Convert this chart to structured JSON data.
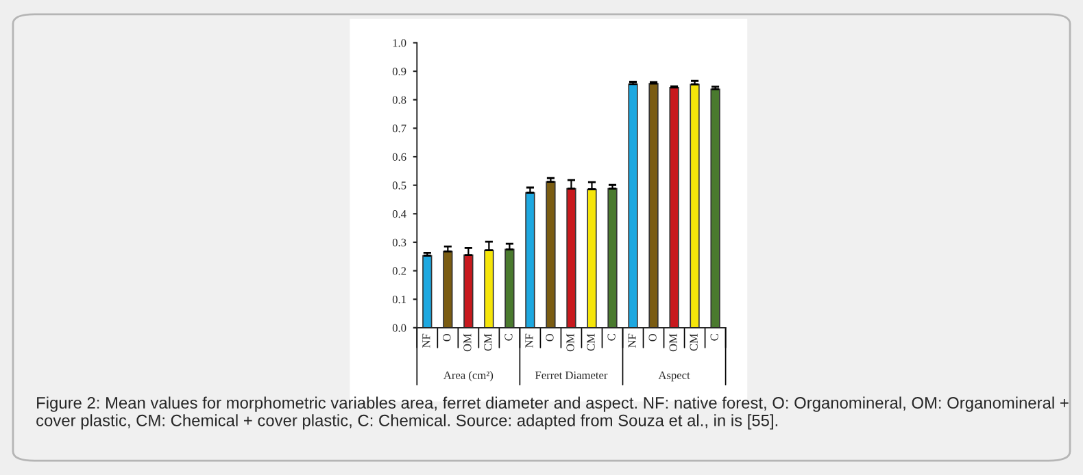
{
  "chart_data": {
    "type": "bar",
    "categories": [
      "NF",
      "O",
      "OM",
      "CM",
      "C",
      "NF",
      "O",
      "OM",
      "CM",
      "C",
      "NF",
      "O",
      "OM",
      "CM",
      "C"
    ],
    "values": [
      0.253,
      0.268,
      0.255,
      0.272,
      0.275,
      0.474,
      0.512,
      0.488,
      0.486,
      0.488,
      0.855,
      0.857,
      0.843,
      0.854,
      0.837
    ],
    "colors": [
      "#1ea8e0",
      "#7a5c12",
      "#c8191e",
      "#f5e50a",
      "#4a7a2e",
      "#1ea8e0",
      "#7a5c12",
      "#c8191e",
      "#f5e50a",
      "#4a7a2e",
      "#1ea8e0",
      "#7a5c12",
      "#c8191e",
      "#f5e50a",
      "#4a7a2e"
    ],
    "errors": [
      [
        0.253,
        0.263
      ],
      [
        0.268,
        0.285
      ],
      [
        0.255,
        0.28
      ],
      [
        0.272,
        0.302
      ],
      [
        0.275,
        0.295
      ],
      [
        0.474,
        0.492
      ],
      [
        0.512,
        0.525
      ],
      [
        0.488,
        0.518
      ],
      [
        0.486,
        0.511
      ],
      [
        0.488,
        0.501
      ],
      [
        0.855,
        0.863
      ],
      [
        0.857,
        0.862
      ],
      [
        0.843,
        0.847
      ],
      [
        0.854,
        0.866
      ],
      [
        0.837,
        0.846
      ]
    ],
    "ylim": [
      0,
      1
    ],
    "yticks": [
      {
        "value": 0,
        "label": "0.0"
      },
      {
        "value": 0.1,
        "label": "0.1"
      },
      {
        "value": 0.2,
        "label": "0.2"
      },
      {
        "value": 0.3,
        "label": "0.3"
      },
      {
        "value": 0.4,
        "label": "0.4"
      },
      {
        "value": 0.5,
        "label": "0.5"
      },
      {
        "value": 0.6,
        "label": "0.6"
      },
      {
        "value": 0.7,
        "label": "0.7"
      },
      {
        "value": 0.8,
        "label": "0.8"
      },
      {
        "value": 0.9,
        "label": "0.9"
      },
      {
        "value": 1,
        "label": "1.0"
      }
    ],
    "annotations": [
      "Area (cm²)",
      "Ferret Diameter",
      "Aspect",
      "Figure 2: Mean values for morphometric variables area, ferret diameter and aspect. NF: native forest, O: Organomineral, OM: Organomineral + cover plastic, CM: Chemical + cover plastic, C: Chemical. Source: adapted from Souza et al., in is [55]."
    ]
  }
}
